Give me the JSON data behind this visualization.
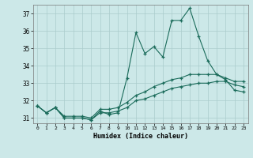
{
  "title": "",
  "xlabel": "Humidex (Indice chaleur)",
  "ylabel": "",
  "bg_color": "#cce8e8",
  "line_color": "#1a6b5a",
  "grid_color": "#aacccc",
  "xlim": [
    -0.5,
    23.5
  ],
  "ylim": [
    30.7,
    37.5
  ],
  "yticks": [
    31,
    32,
    33,
    34,
    35,
    36,
    37
  ],
  "xticks": [
    0,
    1,
    2,
    3,
    4,
    5,
    6,
    7,
    8,
    9,
    10,
    11,
    12,
    13,
    14,
    15,
    16,
    17,
    18,
    19,
    20,
    21,
    22,
    23
  ],
  "line1_y": [
    31.7,
    31.3,
    31.6,
    31.0,
    31.0,
    31.0,
    30.9,
    31.4,
    31.2,
    31.3,
    33.3,
    35.9,
    34.7,
    35.1,
    34.5,
    36.6,
    36.6,
    37.3,
    35.7,
    34.3,
    33.5,
    33.2,
    32.6,
    32.5
  ],
  "line2_y": [
    31.7,
    31.3,
    31.6,
    31.1,
    31.1,
    31.1,
    31.0,
    31.5,
    31.5,
    31.6,
    31.9,
    32.3,
    32.5,
    32.8,
    33.0,
    33.2,
    33.3,
    33.5,
    33.5,
    33.5,
    33.5,
    33.3,
    33.1,
    33.1
  ],
  "line3_y": [
    31.7,
    31.3,
    31.6,
    31.0,
    31.0,
    31.0,
    30.9,
    31.3,
    31.3,
    31.4,
    31.6,
    32.0,
    32.1,
    32.3,
    32.5,
    32.7,
    32.8,
    32.9,
    33.0,
    33.0,
    33.1,
    33.1,
    32.9,
    32.8
  ]
}
